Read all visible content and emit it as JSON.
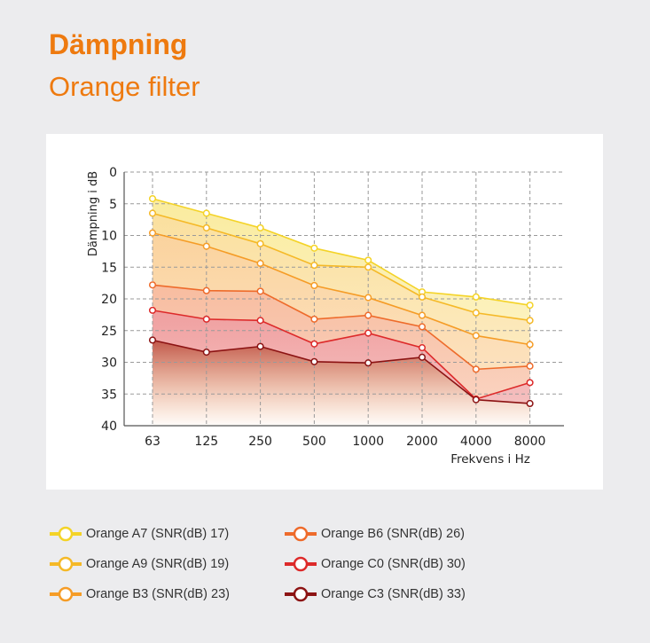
{
  "header": {
    "title": "Dämpning",
    "subtitle": "Orange filter"
  },
  "chart_data": {
    "type": "area",
    "categories": [
      "63",
      "125",
      "250",
      "500",
      "1000",
      "2000",
      "4000",
      "8000"
    ],
    "xlabel": "Frekvens i Hz",
    "ylabel": "Dämpning i dB",
    "ylim": [
      0,
      40
    ],
    "y_inverted": true,
    "yticks": [
      0,
      5,
      10,
      15,
      20,
      25,
      30,
      35,
      40
    ],
    "grid": true,
    "legend_position": "bottom",
    "series": [
      {
        "name": "Orange A7 (SNR(dB) 17)",
        "color": "#f4d327",
        "values": [
          4.2,
          6.5,
          8.8,
          12.0,
          13.9,
          18.9,
          19.7,
          21.0
        ]
      },
      {
        "name": "Orange A9 (SNR(dB) 19)",
        "color": "#f5b927",
        "values": [
          6.5,
          8.8,
          11.3,
          14.7,
          15.0,
          19.7,
          22.2,
          23.4
        ]
      },
      {
        "name": "Orange B3 (SNR(dB) 23)",
        "color": "#f59c26",
        "values": [
          9.6,
          11.7,
          14.4,
          17.9,
          19.8,
          22.6,
          25.8,
          27.2
        ]
      },
      {
        "name": "Orange B6 (SNR(dB) 26)",
        "color": "#ee6b2b",
        "values": [
          17.8,
          18.7,
          18.8,
          23.2,
          22.6,
          24.4,
          31.1,
          30.6
        ]
      },
      {
        "name": "Orange C0 (SNR(dB) 30)",
        "color": "#dd2a2a",
        "values": [
          21.8,
          23.2,
          23.4,
          27.1,
          25.4,
          27.7,
          35.8,
          33.2
        ]
      },
      {
        "name": "Orange C3 (SNR(dB) 33)",
        "color": "#8c1313",
        "values": [
          26.5,
          28.4,
          27.5,
          29.9,
          30.1,
          29.2,
          35.9,
          36.5
        ]
      }
    ]
  }
}
